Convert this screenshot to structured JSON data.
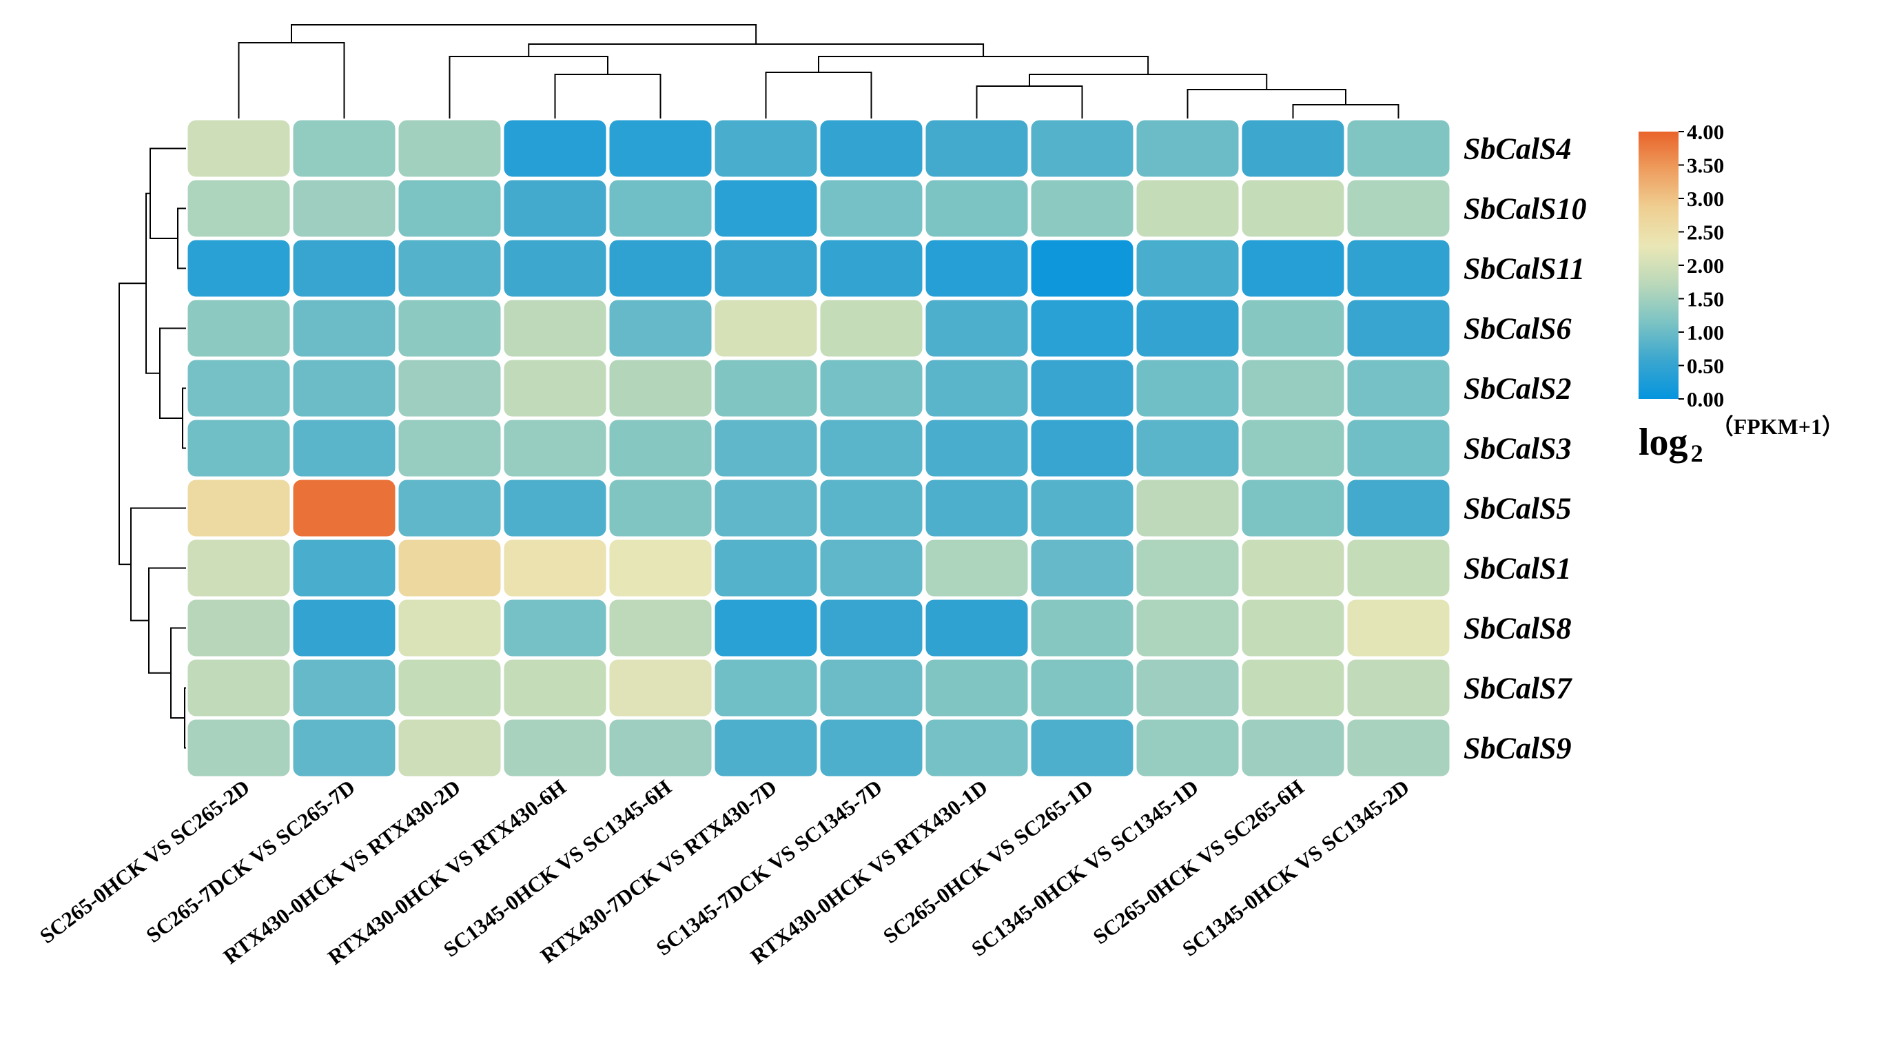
{
  "chart_data": {
    "type": "heatmap",
    "title": "",
    "rows": [
      "SbCalS4",
      "SbCalS10",
      "SbCalS11",
      "SbCalS6",
      "SbCalS2",
      "SbCalS3",
      "SbCalS5",
      "SbCalS1",
      "SbCalS8",
      "SbCalS7",
      "SbCalS9"
    ],
    "columns": [
      "SC265-0HCK VS SC265-2D",
      "SC265-7DCK VS SC265-7D",
      "RTX430-0HCK VS RTX430-2D",
      "RTX430-0HCK VS RTX430-6H",
      "SC1345-0HCK VS SC1345-6H",
      "RTX430-7DCK VS RTX430-7D",
      "SC1345-7DCK VS SC1345-7D",
      "RTX430-0HCK VS RTX430-1D",
      "SC265-0HCK VS SC265-1D",
      "SC1345-0HCK VS SC1345-1D",
      "SC265-0HCK VS SC265-6H",
      "SC1345-0HCK VS SC1345-2D"
    ],
    "values": [
      [
        1.95,
        1.35,
        1.5,
        0.35,
        0.4,
        0.7,
        0.5,
        0.65,
        0.8,
        1.0,
        0.6,
        1.2
      ],
      [
        1.6,
        1.45,
        1.15,
        0.65,
        1.05,
        0.4,
        1.1,
        1.15,
        1.3,
        1.85,
        1.85,
        1.6
      ],
      [
        0.4,
        0.55,
        0.8,
        0.6,
        0.45,
        0.55,
        0.5,
        0.35,
        0.1,
        0.7,
        0.35,
        0.45
      ],
      [
        1.3,
        1.0,
        1.3,
        1.75,
        0.95,
        2.05,
        1.85,
        0.75,
        0.4,
        0.5,
        1.25,
        0.55
      ],
      [
        1.1,
        1.0,
        1.45,
        1.8,
        1.65,
        1.2,
        1.1,
        0.85,
        0.55,
        1.05,
        1.4,
        1.1
      ],
      [
        1.05,
        0.85,
        1.4,
        1.4,
        1.25,
        0.9,
        0.85,
        0.7,
        0.55,
        0.85,
        1.35,
        1.05
      ],
      [
        2.6,
        3.85,
        0.9,
        0.75,
        1.2,
        0.9,
        0.85,
        0.75,
        0.8,
        1.75,
        1.15,
        0.65
      ],
      [
        1.95,
        0.7,
        2.65,
        2.4,
        2.25,
        0.8,
        0.9,
        1.6,
        0.95,
        1.6,
        1.9,
        1.85
      ],
      [
        1.7,
        0.5,
        2.1,
        1.1,
        1.75,
        0.4,
        0.55,
        0.45,
        1.25,
        1.6,
        1.85,
        2.2
      ],
      [
        1.8,
        0.95,
        1.85,
        1.85,
        2.15,
        1.05,
        1.0,
        1.2,
        1.2,
        1.45,
        1.85,
        1.8
      ],
      [
        1.55,
        0.9,
        1.95,
        1.55,
        1.45,
        0.75,
        0.75,
        1.1,
        0.75,
        1.4,
        1.45,
        1.55
      ]
    ],
    "colorbar": {
      "min": 0.0,
      "max": 4.0,
      "ticks": [
        "4.00",
        "3.50",
        "3.00",
        "2.50",
        "2.00",
        "1.50",
        "1.00",
        "0.50",
        "0.00"
      ],
      "colors": [
        "#0595DE",
        "#3AA6CF",
        "#7BC3C4",
        "#BAD8BA",
        "#EAE7B6",
        "#EFCF92",
        "#EE9E5F",
        "#E9632A"
      ],
      "label_main": "log",
      "label_sub": "2",
      "label_unit": "（FPKM+1）"
    },
    "row_dendrogram": true,
    "column_dendrogram": true,
    "grid": false,
    "legend_position": "right"
  }
}
